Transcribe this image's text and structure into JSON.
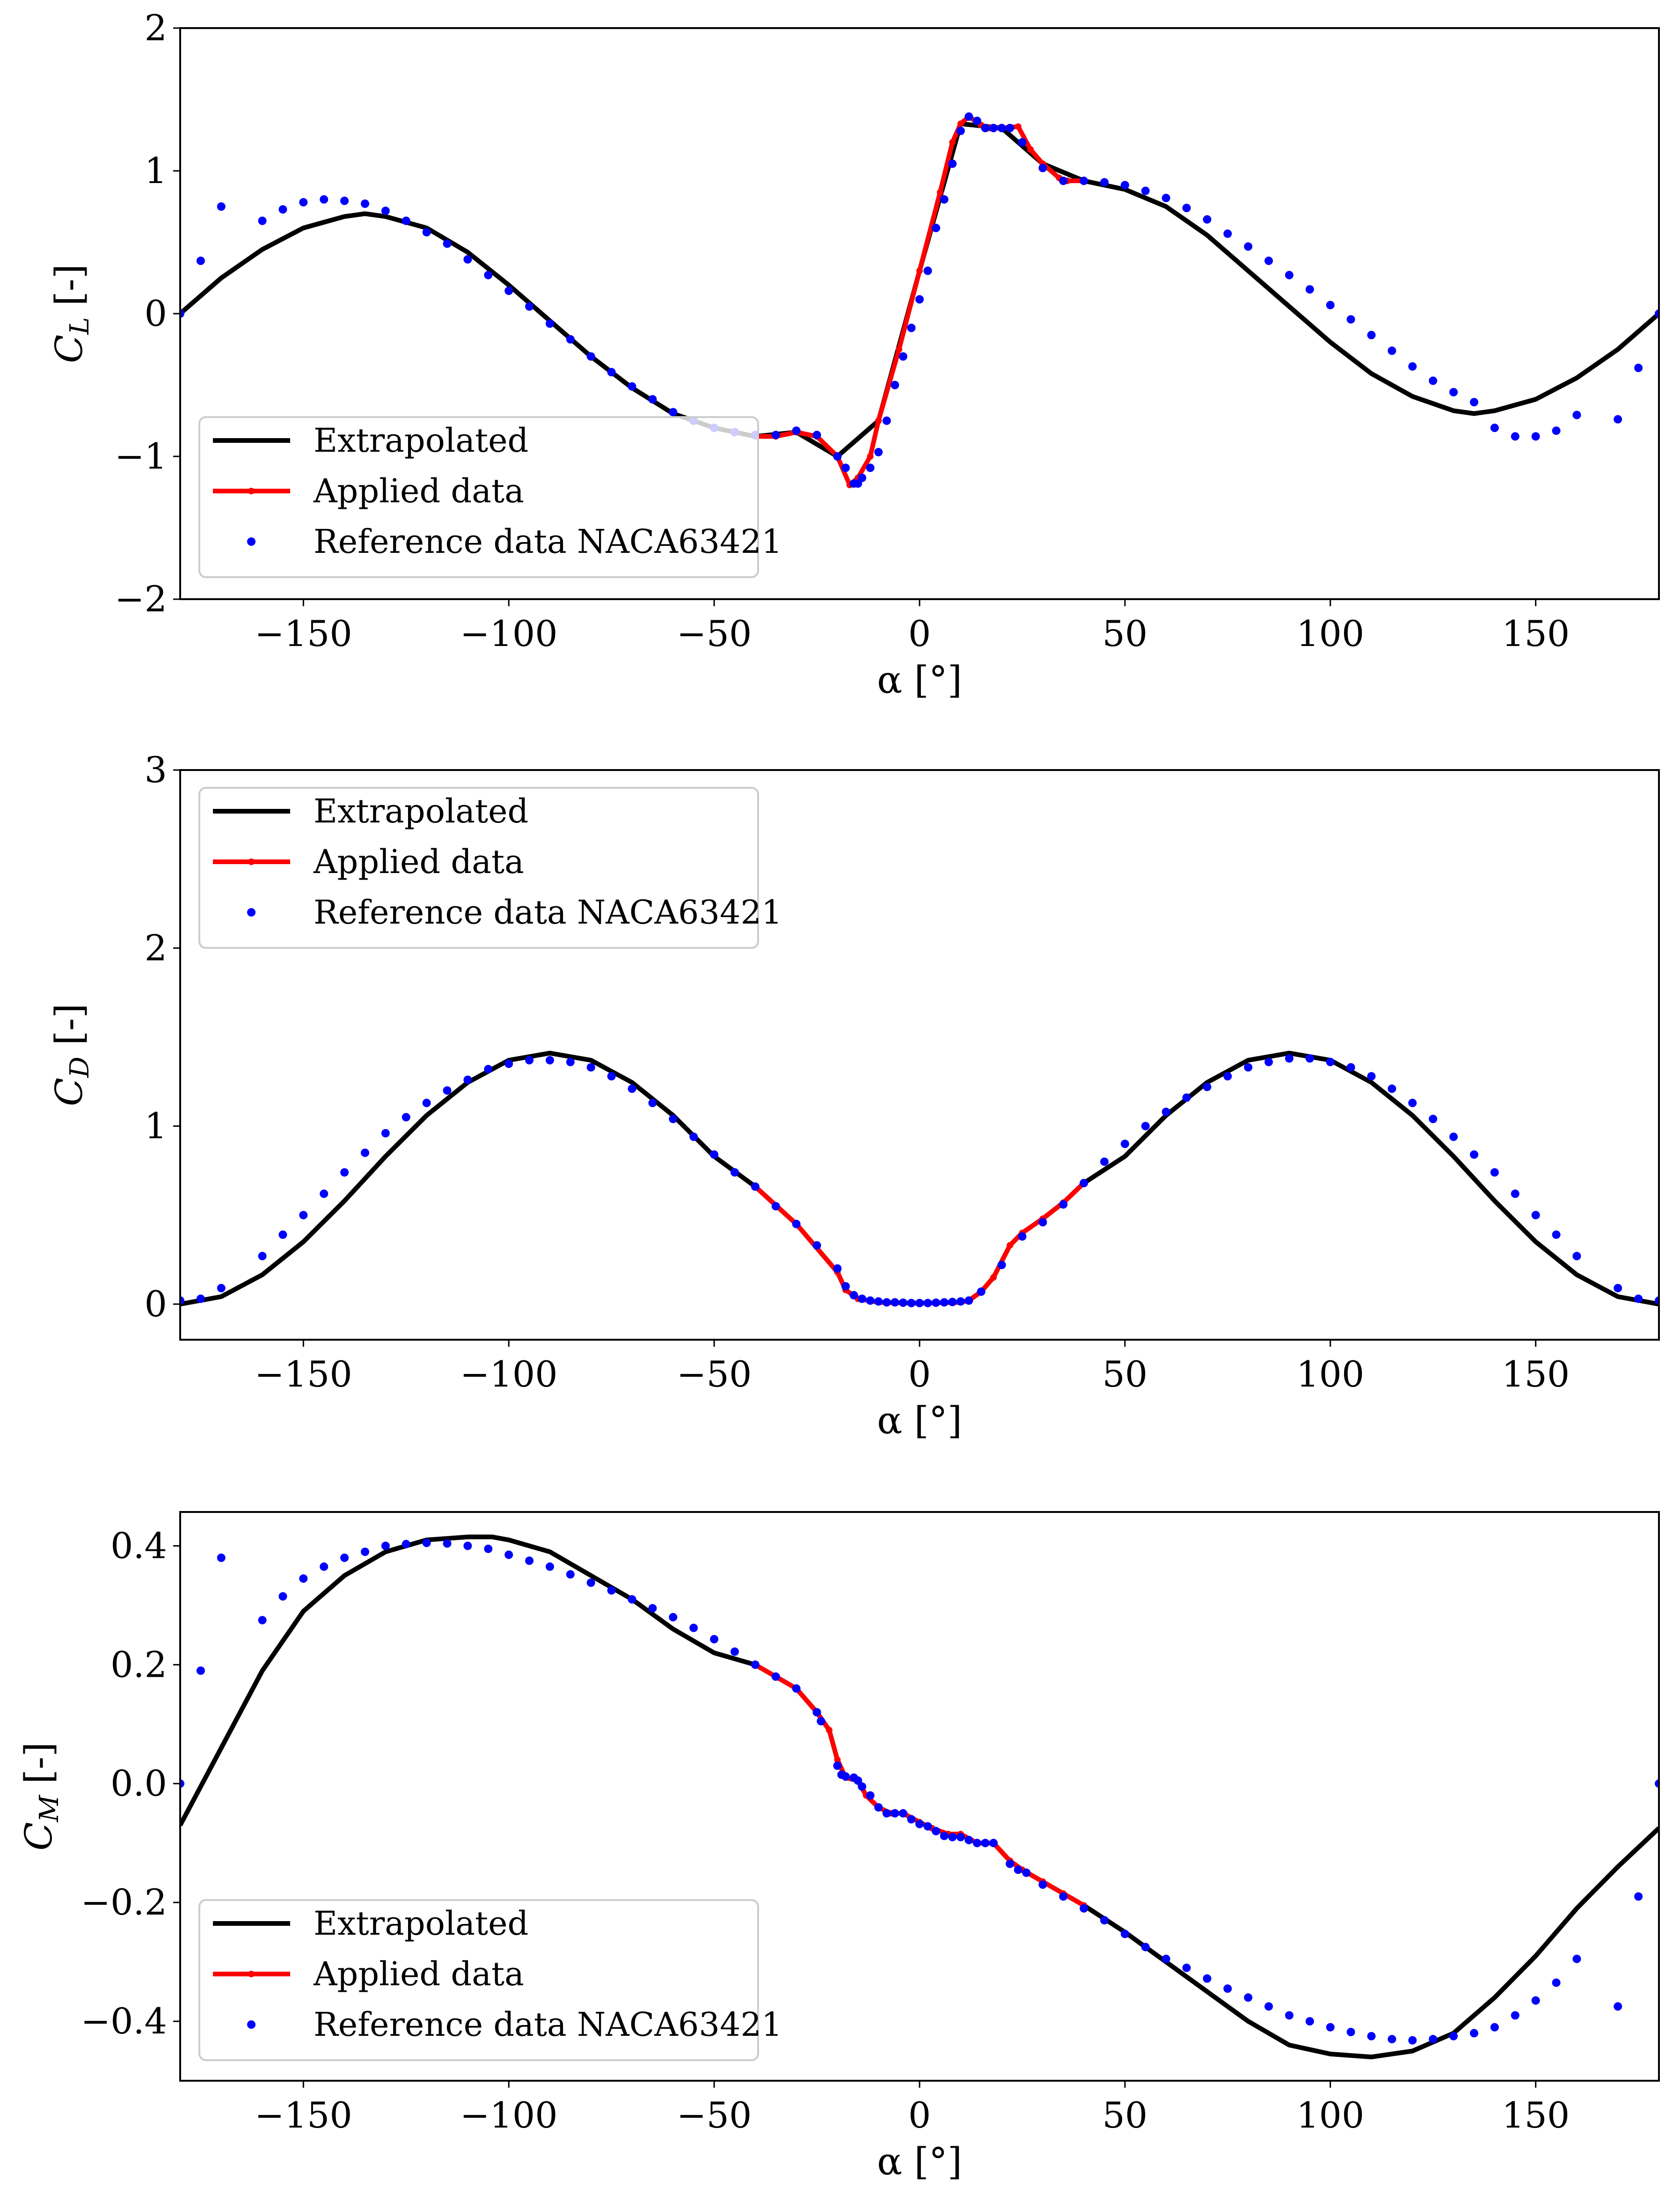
{
  "colors": {
    "extrapolated": "#000000",
    "applied": "#ff0000",
    "reference": "#0000ff"
  },
  "legend_labels": [
    "Extrapolated",
    "Applied data",
    "Reference data NACA63421"
  ],
  "chart_data": [
    {
      "type": "line",
      "xlabel": "α [°]",
      "ylabel": {
        "main": "C",
        "sub": "L",
        "unit": "[-]"
      },
      "xlim": [
        -180,
        180
      ],
      "ylim": [
        -2,
        2
      ],
      "xticks": [
        -150,
        -100,
        -50,
        0,
        50,
        100,
        150
      ],
      "xtick_labels": [
        "−150",
        "−100",
        "−50",
        "0",
        "50",
        "100",
        "150"
      ],
      "yticks": [
        -2,
        -1,
        0,
        1,
        2
      ],
      "ytick_labels": [
        "−2",
        "−1",
        "0",
        "1",
        "2"
      ],
      "legend_position": "lower-left",
      "series": [
        {
          "name": "Extrapolated",
          "x": [
            -180,
            -170,
            -160,
            -150,
            -140,
            -135,
            -130,
            -120,
            -110,
            -100,
            -90,
            -80,
            -70,
            -60,
            -50,
            -40,
            -30,
            -20,
            -10,
            0,
            10,
            20,
            30,
            40,
            50,
            60,
            70,
            80,
            90,
            100,
            110,
            120,
            130,
            135,
            140,
            150,
            160,
            170,
            180
          ],
          "y": [
            0,
            0.25,
            0.45,
            0.6,
            0.68,
            0.7,
            0.68,
            0.6,
            0.43,
            0.2,
            -0.05,
            -0.3,
            -0.52,
            -0.7,
            -0.8,
            -0.86,
            -0.83,
            -1.0,
            -0.75,
            0.3,
            1.33,
            1.3,
            1.05,
            0.93,
            0.87,
            0.75,
            0.55,
            0.3,
            0.05,
            -0.2,
            -0.42,
            -0.58,
            -0.68,
            -0.7,
            -0.68,
            -0.6,
            -0.45,
            -0.25,
            0
          ]
        },
        {
          "name": "Applied data",
          "x": [
            -40,
            -35,
            -30,
            -25,
            -20,
            -17,
            -15,
            -12,
            -10,
            -5,
            0,
            5,
            8,
            10,
            12,
            15,
            17,
            20,
            24,
            27,
            30,
            34,
            36,
            40
          ],
          "y": [
            -0.86,
            -0.86,
            -0.83,
            -0.86,
            -1.0,
            -1.2,
            -1.15,
            -1.0,
            -0.75,
            -0.25,
            0.3,
            0.85,
            1.2,
            1.33,
            1.38,
            1.32,
            1.3,
            1.3,
            1.31,
            1.15,
            1.05,
            0.95,
            0.93,
            0.93
          ]
        },
        {
          "name": "Reference data NACA63421",
          "x": [
            -180,
            -175,
            -170,
            -160,
            -155,
            -150,
            -145,
            -140,
            -135,
            -130,
            -125,
            -120,
            -115,
            -110,
            -105,
            -100,
            -95,
            -90,
            -85,
            -80,
            -75,
            -70,
            -65,
            -60,
            -55,
            -50,
            -45,
            -40,
            -35,
            -30,
            -25,
            -20,
            -18,
            -16,
            -15,
            -14,
            -12,
            -10,
            -8,
            -6,
            -4,
            -2,
            0,
            2,
            4,
            6,
            8,
            10,
            12,
            14,
            16,
            18,
            20,
            22,
            25,
            30,
            35,
            40,
            45,
            50,
            55,
            60,
            65,
            70,
            75,
            80,
            85,
            90,
            95,
            100,
            105,
            110,
            115,
            120,
            125,
            130,
            135,
            140,
            145,
            150,
            155,
            160,
            170,
            175,
            180
          ],
          "y": [
            0,
            0.37,
            0.75,
            0.65,
            0.73,
            0.78,
            0.8,
            0.79,
            0.77,
            0.72,
            0.65,
            0.57,
            0.49,
            0.38,
            0.27,
            0.16,
            0.05,
            -0.07,
            -0.18,
            -0.3,
            -0.41,
            -0.51,
            -0.6,
            -0.69,
            -0.75,
            -0.8,
            -0.83,
            -0.85,
            -0.85,
            -0.82,
            -0.85,
            -1.0,
            -1.08,
            -1.19,
            -1.19,
            -1.15,
            -1.08,
            -0.97,
            -0.75,
            -0.5,
            -0.3,
            -0.1,
            0.1,
            0.3,
            0.6,
            0.8,
            1.05,
            1.28,
            1.38,
            1.35,
            1.3,
            1.3,
            1.3,
            1.3,
            1.2,
            1.02,
            0.93,
            0.93,
            0.92,
            0.9,
            0.86,
            0.81,
            0.74,
            0.66,
            0.56,
            0.47,
            0.37,
            0.27,
            0.17,
            0.06,
            -0.04,
            -0.15,
            -0.26,
            -0.37,
            -0.47,
            -0.55,
            -0.62,
            -0.8,
            -0.86,
            -0.86,
            -0.82,
            -0.71,
            -0.74,
            -0.38,
            0
          ]
        }
      ]
    },
    {
      "type": "line",
      "xlabel": "α [°]",
      "ylabel": {
        "main": "C",
        "sub": "D",
        "unit": "[-]"
      },
      "xlim": [
        -180,
        180
      ],
      "ylim": [
        -0.2,
        3
      ],
      "xticks": [
        -150,
        -100,
        -50,
        0,
        50,
        100,
        150
      ],
      "xtick_labels": [
        "−150",
        "−100",
        "−50",
        "0",
        "50",
        "100",
        "150"
      ],
      "yticks": [
        0,
        1,
        2,
        3
      ],
      "ytick_labels": [
        "0",
        "1",
        "2",
        "3"
      ],
      "legend_position": "upper-left",
      "series": [
        {
          "name": "Extrapolated",
          "x": [
            -180,
            -170,
            -160,
            -150,
            -140,
            -130,
            -120,
            -110,
            -100,
            -90,
            -80,
            -70,
            -60,
            -50,
            -40,
            -30,
            -20,
            -18,
            -15,
            -10,
            0,
            10,
            12,
            15,
            18,
            22,
            25,
            30,
            35,
            40,
            50,
            60,
            70,
            80,
            90,
            100,
            110,
            120,
            130,
            140,
            150,
            160,
            170,
            180
          ],
          "y": [
            0,
            0.042,
            0.165,
            0.35,
            0.58,
            0.83,
            1.06,
            1.245,
            1.37,
            1.41,
            1.37,
            1.245,
            1.06,
            0.83,
            0.66,
            0.45,
            0.18,
            0.08,
            0.03,
            0.01,
            0.005,
            0.01,
            0.02,
            0.07,
            0.15,
            0.33,
            0.4,
            0.48,
            0.57,
            0.68,
            0.83,
            1.06,
            1.245,
            1.37,
            1.41,
            1.37,
            1.245,
            1.06,
            0.83,
            0.58,
            0.35,
            0.165,
            0.042,
            0
          ]
        },
        {
          "name": "Applied data",
          "x": [
            -40,
            -30,
            -20,
            -18,
            -15,
            -10,
            0,
            10,
            12,
            15,
            18,
            22,
            25,
            30,
            35,
            40
          ],
          "y": [
            0.66,
            0.45,
            0.18,
            0.08,
            0.03,
            0.01,
            0.005,
            0.01,
            0.02,
            0.07,
            0.15,
            0.33,
            0.4,
            0.48,
            0.57,
            0.68
          ]
        },
        {
          "name": "Reference data NACA63421",
          "x": [
            -180,
            -175,
            -170,
            -160,
            -155,
            -150,
            -145,
            -140,
            -135,
            -130,
            -125,
            -120,
            -115,
            -110,
            -105,
            -100,
            -95,
            -90,
            -85,
            -80,
            -75,
            -70,
            -65,
            -60,
            -55,
            -50,
            -45,
            -40,
            -35,
            -30,
            -25,
            -20,
            -18,
            -16,
            -14,
            -12,
            -10,
            -8,
            -6,
            -4,
            -2,
            0,
            2,
            4,
            6,
            8,
            10,
            12,
            15,
            20,
            25,
            30,
            35,
            40,
            45,
            50,
            55,
            60,
            65,
            70,
            75,
            80,
            85,
            90,
            95,
            100,
            105,
            110,
            115,
            120,
            125,
            130,
            135,
            140,
            145,
            150,
            155,
            160,
            170,
            175,
            180
          ],
          "y": [
            0.02,
            0.03,
            0.09,
            0.27,
            0.39,
            0.5,
            0.62,
            0.74,
            0.85,
            0.96,
            1.05,
            1.13,
            1.2,
            1.26,
            1.32,
            1.35,
            1.37,
            1.37,
            1.36,
            1.33,
            1.28,
            1.21,
            1.13,
            1.04,
            0.94,
            0.84,
            0.74,
            0.66,
            0.55,
            0.45,
            0.33,
            0.2,
            0.1,
            0.05,
            0.03,
            0.02,
            0.015,
            0.01,
            0.01,
            0.008,
            0.006,
            0.006,
            0.006,
            0.008,
            0.01,
            0.012,
            0.015,
            0.02,
            0.07,
            0.22,
            0.38,
            0.46,
            0.56,
            0.68,
            0.8,
            0.9,
            1.0,
            1.08,
            1.16,
            1.22,
            1.28,
            1.33,
            1.36,
            1.38,
            1.38,
            1.36,
            1.33,
            1.28,
            1.21,
            1.13,
            1.04,
            0.94,
            0.84,
            0.74,
            0.62,
            0.5,
            0.39,
            0.27,
            0.09,
            0.03,
            0.02
          ]
        }
      ]
    },
    {
      "type": "line",
      "xlabel": "α [°]",
      "ylabel": {
        "main": "C",
        "sub": "M",
        "unit": "[-]"
      },
      "xlim": [
        -180,
        180
      ],
      "ylim": [
        -0.5,
        0.457
      ],
      "xticks": [
        -150,
        -100,
        -50,
        0,
        50,
        100,
        150
      ],
      "xtick_labels": [
        "−150",
        "−100",
        "−50",
        "0",
        "50",
        "100",
        "150"
      ],
      "yticks": [
        -0.4,
        -0.2,
        0.0,
        0.2,
        0.4
      ],
      "ytick_labels": [
        "−0.4",
        "−0.2",
        "0.0",
        "0.2",
        "0.4"
      ],
      "legend_position": "lower-left",
      "series": [
        {
          "name": "Extrapolated",
          "x": [
            -180,
            -170,
            -160,
            -150,
            -140,
            -130,
            -120,
            -110,
            -104,
            -100,
            -90,
            -80,
            -70,
            -60,
            -50,
            -40,
            -35,
            -30,
            -25,
            -22,
            -20,
            -18,
            -15,
            -13,
            -10,
            -7,
            -4,
            0,
            3,
            7,
            10,
            14,
            18,
            22,
            25,
            30,
            35,
            40,
            50,
            60,
            70,
            80,
            90,
            100,
            110,
            120,
            130,
            140,
            150,
            160,
            170,
            180
          ],
          "y": [
            -0.07,
            0.06,
            0.19,
            0.29,
            0.35,
            0.39,
            0.41,
            0.415,
            0.415,
            0.41,
            0.39,
            0.35,
            0.31,
            0.26,
            0.22,
            0.2,
            0.18,
            0.16,
            0.12,
            0.09,
            0.04,
            0.01,
            0.005,
            -0.02,
            -0.04,
            -0.05,
            -0.05,
            -0.065,
            -0.075,
            -0.085,
            -0.085,
            -0.1,
            -0.1,
            -0.13,
            -0.145,
            -0.165,
            -0.185,
            -0.205,
            -0.25,
            -0.3,
            -0.35,
            -0.4,
            -0.44,
            -0.455,
            -0.46,
            -0.45,
            -0.42,
            -0.36,
            -0.29,
            -0.21,
            -0.14,
            -0.075
          ]
        },
        {
          "name": "Applied data",
          "x": [
            -40,
            -35,
            -30,
            -25,
            -22,
            -20,
            -18,
            -15,
            -13,
            -10,
            -7,
            -4,
            0,
            3,
            7,
            10,
            14,
            18,
            22,
            25,
            30,
            35,
            40
          ],
          "y": [
            0.2,
            0.18,
            0.16,
            0.12,
            0.09,
            0.04,
            0.01,
            0.005,
            -0.02,
            -0.04,
            -0.05,
            -0.05,
            -0.065,
            -0.075,
            -0.085,
            -0.085,
            -0.1,
            -0.1,
            -0.13,
            -0.145,
            -0.165,
            -0.185,
            -0.205
          ]
        },
        {
          "name": "Reference data NACA63421",
          "x": [
            -180,
            -175,
            -170,
            -160,
            -155,
            -150,
            -145,
            -140,
            -135,
            -130,
            -125,
            -120,
            -115,
            -110,
            -105,
            -100,
            -95,
            -90,
            -85,
            -80,
            -75,
            -70,
            -65,
            -60,
            -55,
            -50,
            -45,
            -40,
            -35,
            -30,
            -25,
            -24,
            -20,
            -19,
            -18,
            -16,
            -15,
            -14,
            -12,
            -10,
            -8,
            -6,
            -4,
            -2,
            0,
            2,
            4,
            6,
            8,
            10,
            12,
            14,
            16,
            18,
            22,
            24,
            26,
            30,
            35,
            40,
            45,
            50,
            55,
            60,
            65,
            70,
            75,
            80,
            85,
            90,
            95,
            100,
            105,
            110,
            115,
            120,
            125,
            130,
            135,
            140,
            145,
            150,
            155,
            160,
            170,
            175,
            180
          ],
          "y": [
            0,
            0.19,
            0.38,
            0.275,
            0.315,
            0.345,
            0.365,
            0.38,
            0.39,
            0.4,
            0.403,
            0.405,
            0.404,
            0.4,
            0.395,
            0.385,
            0.375,
            0.365,
            0.352,
            0.338,
            0.325,
            0.31,
            0.295,
            0.28,
            0.262,
            0.243,
            0.222,
            0.2,
            0.18,
            0.16,
            0.12,
            0.105,
            0.03,
            0.015,
            0.012,
            0.01,
            0.005,
            -0.005,
            -0.02,
            -0.04,
            -0.05,
            -0.05,
            -0.05,
            -0.06,
            -0.068,
            -0.072,
            -0.08,
            -0.088,
            -0.09,
            -0.09,
            -0.095,
            -0.1,
            -0.1,
            -0.1,
            -0.135,
            -0.145,
            -0.15,
            -0.17,
            -0.19,
            -0.21,
            -0.23,
            -0.253,
            -0.275,
            -0.295,
            -0.31,
            -0.328,
            -0.345,
            -0.36,
            -0.375,
            -0.39,
            -0.4,
            -0.41,
            -0.418,
            -0.425,
            -0.43,
            -0.432,
            -0.43,
            -0.425,
            -0.42,
            -0.41,
            -0.39,
            -0.365,
            -0.335,
            -0.295,
            -0.375,
            -0.19,
            0
          ]
        }
      ]
    }
  ]
}
